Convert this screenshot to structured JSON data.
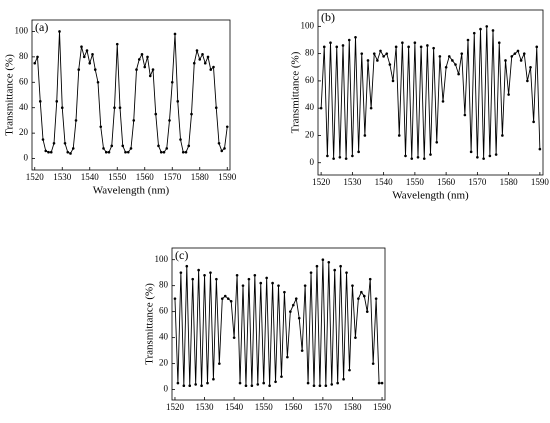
{
  "chart_data": [
    {
      "type": "line",
      "annotation": "(a)",
      "x_label": "Wavelength (nm)",
      "y_label": "Transmittance (%)",
      "xlim": [
        1519,
        1591
      ],
      "ylim": [
        -9,
        109
      ],
      "xticks": [
        1520,
        1530,
        1540,
        1550,
        1560,
        1570,
        1580,
        1590
      ],
      "yticks": [
        0,
        20,
        40,
        60,
        80,
        100
      ],
      "x": [
        1520,
        1521,
        1522,
        1523,
        1524,
        1525,
        1526,
        1527,
        1528,
        1529,
        1530,
        1531,
        1532,
        1533,
        1534,
        1535,
        1536,
        1537,
        1538,
        1539,
        1540,
        1541,
        1542,
        1543,
        1544,
        1545,
        1546,
        1547,
        1548,
        1549,
        1550,
        1551,
        1552,
        1553,
        1554,
        1555,
        1556,
        1557,
        1558,
        1559,
        1560,
        1561,
        1562,
        1563,
        1564,
        1565,
        1566,
        1567,
        1568,
        1569,
        1570,
        1571,
        1572,
        1573,
        1574,
        1575,
        1576,
        1577,
        1578,
        1579,
        1580,
        1581,
        1582,
        1583,
        1584,
        1585,
        1586,
        1587,
        1588,
        1589,
        1590
      ],
      "series": [
        {
          "color": "#000000",
          "values": [
            75,
            80,
            45,
            15,
            6,
            5,
            5,
            12,
            45,
            100,
            40,
            12,
            5,
            4,
            8,
            30,
            70,
            88,
            80,
            85,
            75,
            82,
            70,
            60,
            25,
            8,
            5,
            5,
            10,
            40,
            90,
            40,
            10,
            5,
            5,
            8,
            30,
            70,
            78,
            82,
            72,
            80,
            65,
            70,
            35,
            10,
            5,
            5,
            8,
            30,
            60,
            98,
            45,
            15,
            5,
            5,
            10,
            35,
            75,
            85,
            78,
            82,
            75,
            80,
            70,
            72,
            40,
            12,
            6,
            8,
            25
          ]
        }
      ]
    },
    {
      "type": "line",
      "annotation": "(b)",
      "x_label": "Wavelength (nm)",
      "y_label": "Transmittance (%)",
      "xlim": [
        1519,
        1591
      ],
      "ylim": [
        -9,
        112
      ],
      "xticks": [
        1520,
        1530,
        1540,
        1550,
        1560,
        1570,
        1580,
        1590
      ],
      "yticks": [
        0,
        20,
        40,
        60,
        80,
        100
      ],
      "x": [
        1520,
        1521,
        1522,
        1523,
        1524,
        1525,
        1526,
        1527,
        1528,
        1529,
        1530,
        1531,
        1532,
        1533,
        1534,
        1535,
        1536,
        1537,
        1538,
        1539,
        1540,
        1541,
        1542,
        1543,
        1544,
        1545,
        1546,
        1547,
        1548,
        1549,
        1550,
        1551,
        1552,
        1553,
        1554,
        1555,
        1556,
        1557,
        1558,
        1559,
        1560,
        1561,
        1562,
        1563,
        1564,
        1565,
        1566,
        1567,
        1568,
        1569,
        1570,
        1571,
        1572,
        1573,
        1574,
        1575,
        1576,
        1577,
        1578,
        1579,
        1580,
        1581,
        1582,
        1583,
        1584,
        1585,
        1586,
        1587,
        1588,
        1589,
        1590
      ],
      "series": [
        {
          "color": "#000000",
          "values": [
            40,
            85,
            5,
            88,
            3,
            85,
            4,
            86,
            3,
            90,
            5,
            92,
            8,
            80,
            20,
            75,
            40,
            80,
            75,
            82,
            78,
            80,
            72,
            60,
            85,
            20,
            88,
            5,
            85,
            3,
            88,
            4,
            85,
            3,
            86,
            6,
            84,
            15,
            78,
            45,
            70,
            78,
            75,
            72,
            65,
            80,
            35,
            90,
            8,
            95,
            4,
            98,
            3,
            100,
            5,
            97,
            6,
            88,
            20,
            75,
            50,
            78,
            80,
            82,
            75,
            80,
            60,
            70,
            30,
            85,
            10
          ]
        }
      ]
    },
    {
      "type": "line",
      "annotation": "(c)",
      "y_label": "Transmittance (%)",
      "xlim": [
        1519,
        1591
      ],
      "ylim": [
        -8,
        109
      ],
      "xticks": [
        1520,
        1530,
        1540,
        1550,
        1560,
        1570,
        1580,
        1590
      ],
      "yticks": [
        0,
        20,
        40,
        60,
        80,
        100
      ],
      "x": [
        1520,
        1521,
        1522,
        1523,
        1524,
        1525,
        1526,
        1527,
        1528,
        1529,
        1530,
        1531,
        1532,
        1533,
        1534,
        1535,
        1536,
        1537,
        1538,
        1539,
        1540,
        1541,
        1542,
        1543,
        1544,
        1545,
        1546,
        1547,
        1548,
        1549,
        1550,
        1551,
        1552,
        1553,
        1554,
        1555,
        1556,
        1557,
        1558,
        1559,
        1560,
        1561,
        1562,
        1563,
        1564,
        1565,
        1566,
        1567,
        1568,
        1569,
        1570,
        1571,
        1572,
        1573,
        1574,
        1575,
        1576,
        1577,
        1578,
        1579,
        1580,
        1581,
        1582,
        1583,
        1584,
        1585,
        1586,
        1587,
        1588,
        1589,
        1590
      ],
      "series": [
        {
          "color": "#000000",
          "values": [
            70,
            5,
            90,
            3,
            95,
            3,
            85,
            4,
            92,
            3,
            88,
            5,
            90,
            8,
            85,
            20,
            70,
            72,
            70,
            68,
            40,
            88,
            5,
            80,
            3,
            85,
            3,
            88,
            4,
            82,
            5,
            86,
            3,
            82,
            6,
            80,
            10,
            75,
            25,
            60,
            65,
            70,
            55,
            30,
            80,
            5,
            90,
            3,
            95,
            3,
            100,
            3,
            98,
            4,
            92,
            5,
            95,
            8,
            90,
            15,
            80,
            40,
            70,
            75,
            72,
            60,
            85,
            20,
            70,
            5,
            5
          ]
        }
      ]
    }
  ]
}
